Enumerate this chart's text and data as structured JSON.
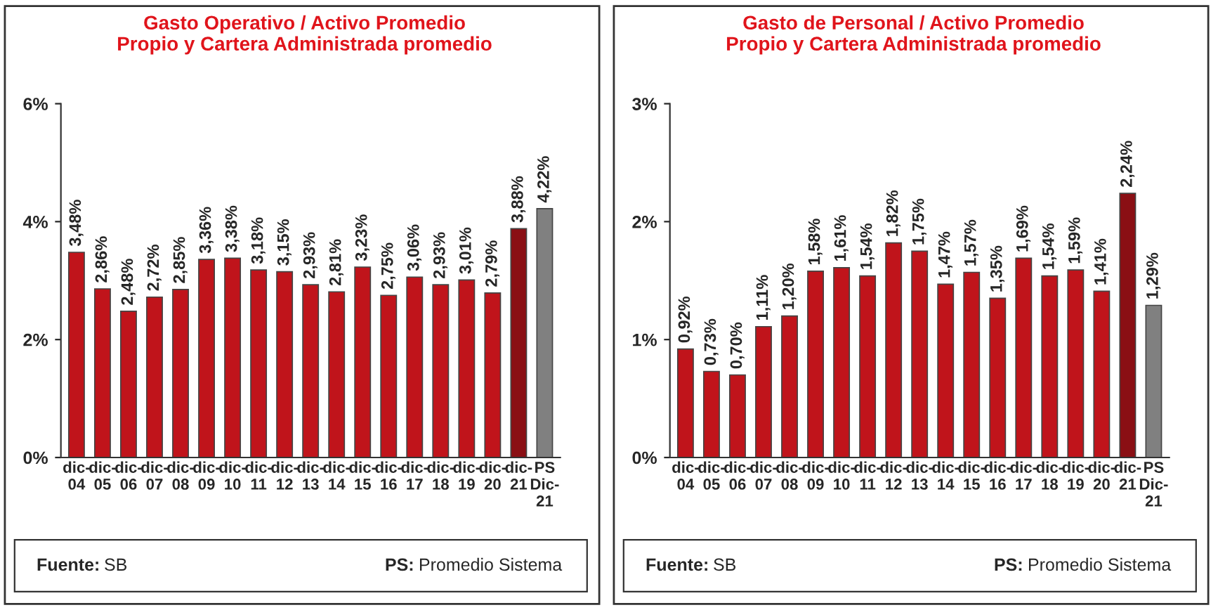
{
  "chart_data": [
    {
      "type": "bar",
      "title": "Gasto Operativo / Activo Promedio\nPropio y Cartera Administrada promedio",
      "categories": [
        "dic-\n04",
        "dic-\n05",
        "dic-\n06",
        "dic-\n07",
        "dic-\n08",
        "dic-\n09",
        "dic-\n10",
        "dic-\n11",
        "dic-\n12",
        "dic-\n13",
        "dic-\n14",
        "dic-\n15",
        "dic-\n16",
        "dic-\n17",
        "dic-\n18",
        "dic-\n19",
        "dic-\n20",
        "dic-\n21",
        "PS\nDic-\n21"
      ],
      "values": [
        3.48,
        2.86,
        2.48,
        2.72,
        2.85,
        3.36,
        3.38,
        3.18,
        3.15,
        2.93,
        2.81,
        3.23,
        2.75,
        3.06,
        2.93,
        3.01,
        2.79,
        3.88,
        4.22
      ],
      "value_labels": [
        "3,48%",
        "2,86%",
        "2,48%",
        "2,72%",
        "2,85%",
        "3,36%",
        "3,38%",
        "3,18%",
        "3,15%",
        "2,93%",
        "2,81%",
        "3,23%",
        "2,75%",
        "3,06%",
        "2,93%",
        "3,01%",
        "2,79%",
        "3,88%",
        "4,22%"
      ],
      "colors": [
        "#c0141b",
        "#c0141b",
        "#c0141b",
        "#c0141b",
        "#c0141b",
        "#c0141b",
        "#c0141b",
        "#c0141b",
        "#c0141b",
        "#c0141b",
        "#c0141b",
        "#c0141b",
        "#c0141b",
        "#c0141b",
        "#c0141b",
        "#c0141b",
        "#c0141b",
        "#8a0f14",
        "#808080"
      ],
      "ylim": [
        0,
        6
      ],
      "yticks": [
        {
          "value": 0,
          "label": "0%"
        },
        {
          "value": 2,
          "label": "2%"
        },
        {
          "value": 4,
          "label": "4%"
        },
        {
          "value": 6,
          "label": "6%"
        }
      ],
      "grid": false,
      "legend": false,
      "annotations": [
        "Fuente: SB",
        "PS: Promedio Sistema"
      ]
    },
    {
      "type": "bar",
      "title": "Gasto de Personal / Activo Promedio\nPropio y Cartera Administrada promedio",
      "categories": [
        "dic-\n04",
        "dic-\n05",
        "dic-\n06",
        "dic-\n07",
        "dic-\n08",
        "dic-\n09",
        "dic-\n10",
        "dic-\n11",
        "dic-\n12",
        "dic-\n13",
        "dic-\n14",
        "dic-\n15",
        "dic-\n16",
        "dic-\n17",
        "dic-\n18",
        "dic-\n19",
        "dic-\n20",
        "dic-\n21",
        "PS\nDic-\n21"
      ],
      "values": [
        0.92,
        0.73,
        0.7,
        1.11,
        1.2,
        1.58,
        1.61,
        1.54,
        1.82,
        1.75,
        1.47,
        1.57,
        1.35,
        1.69,
        1.54,
        1.59,
        1.41,
        2.24,
        1.29
      ],
      "value_labels": [
        "0,92%",
        "0,73%",
        "0,70%",
        "1,11%",
        "1,20%",
        "1,58%",
        "1,61%",
        "1,54%",
        "1,82%",
        "1,75%",
        "1,47%",
        "1,57%",
        "1,35%",
        "1,69%",
        "1,54%",
        "1,59%",
        "1,41%",
        "2,24%",
        "1,29%"
      ],
      "colors": [
        "#c0141b",
        "#c0141b",
        "#c0141b",
        "#c0141b",
        "#c0141b",
        "#c0141b",
        "#c0141b",
        "#c0141b",
        "#c0141b",
        "#c0141b",
        "#c0141b",
        "#c0141b",
        "#c0141b",
        "#c0141b",
        "#c0141b",
        "#c0141b",
        "#c0141b",
        "#8a0f14",
        "#808080"
      ],
      "ylim": [
        0,
        3
      ],
      "yticks": [
        {
          "value": 0,
          "label": "0%"
        },
        {
          "value": 1,
          "label": "1%"
        },
        {
          "value": 2,
          "label": "2%"
        },
        {
          "value": 3,
          "label": "3%"
        }
      ],
      "grid": false,
      "legend": false,
      "annotations": [
        "Fuente: SB",
        "PS: Promedio Sistema"
      ]
    }
  ]
}
